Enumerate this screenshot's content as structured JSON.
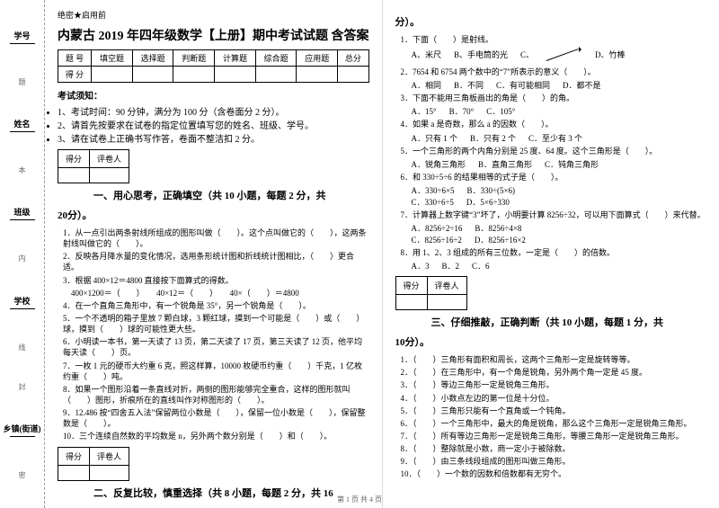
{
  "secret": "绝密★启用前",
  "title": "内蒙古 2019 年四年级数学【上册】期中考试试题 含答案",
  "scoreTable": {
    "headers": [
      "题 号",
      "填空题",
      "选择题",
      "判断题",
      "计算题",
      "综合题",
      "应用题",
      "总分"
    ],
    "row": [
      "得 分",
      "",
      "",
      "",
      "",
      "",
      "",
      ""
    ]
  },
  "noticeHdr": "考试须知：",
  "notices": [
    "1、考试时间：90 分钟，满分为 100 分（含卷面分 2 分）。",
    "2、请首先按要求在试卷的指定位置填写您的姓名、班级、学号。",
    "3、请在试卷上正确书写作答，卷面不整洁扣 2 分。"
  ],
  "markCols": [
    "得分",
    "评卷人"
  ],
  "sect1": "一、用心思考，正确填空（共 10 小题，每题 2 分，共",
  "sect1b": "20分）。",
  "q1": [
    "1．从一点引出两条射线所组成的图形叫做（　　）。这个点叫做它的（　　），这两条射线叫做它的（　　）。",
    "2．反映各月降水量的变化情况，选用条形统计图和折线统计图相比，（　　）更合适。",
    "3．根据 400×12＝4800 直接按下面算式的得数。",
    "　400×1200＝（　　）　　40×12＝（　　）　　40×（　　）＝4800",
    "4．在一个直角三角形中，有一个锐角是 35°，另一个锐角是（　　）。",
    "5．一个不透明的箱子里放 7 颗白球，3 颗红球，摸到一个可能是（　　）或（　　）球，摸到（　　）球的可能性更大些。",
    "6．小明读一本书，第一天读了 13 页，第二天读了 17 页，第三天读了 12 页，他平均每天读（　　）页。",
    "7．一枚 1 元的硬币大约重 6 克，照这样算，10000 枚硬币约重（　　）千克，1 亿枚约重（　　）吨。",
    "8．如果一个图形沿着一条直线对折，两侧的图形能够完全重合，这样的图形就叫（　　）图形，折痕所在的直线叫作对称图形的（　　）。",
    "9．12.486 按“四舍五入法”保留两位小数是（　　），保留一位小数是（　　），保留整数是（　　）。",
    "10．三个连续自然数的平均数是 n，另外两个数分别是（　　）和（　　）。"
  ],
  "sect2": "二、反复比较，慎重选择（共 8 小题，每题 2 分，共 16",
  "sect2b": "分）。",
  "q2": [
    {
      "t": "1．下面（　　）是射线。",
      "opts": [
        "A、米尺",
        "B、手电筒的光",
        "C、",
        "D、竹棒"
      ],
      "arrow": true
    },
    {
      "t": "2．7654 和 6754 两个数中的“7”所表示的意义（　　）。",
      "opts": [
        "A．相同",
        "B．不同",
        "C．有可能相同",
        "D．都不是"
      ]
    },
    {
      "t": "3．下面不能用三角板画出的角是（　　）的角。",
      "opts": [
        "A．15°",
        "B．70°",
        "C．105°"
      ]
    },
    {
      "t": "4．如果 a 是奇数，那么 a 的因数（　　）。",
      "opts": [
        "A．只有 1 个",
        "B．只有 2 个",
        "C．至少有 3 个"
      ]
    },
    {
      "t": "5．一个三角形的两个内角分别是 25 度、64 度。这个三角形是（　　）。",
      "opts": [
        "A．锐角三角形",
        "B．直角三角形",
        "C．钝角三角形"
      ]
    },
    {
      "t": "6．和 330÷5÷6 的结果相等的式子是（　　）。",
      "opts": [
        "A．330÷6×5",
        "B．330÷(5×6)",
        "",
        "C．330÷6÷5",
        "D．5×6÷330"
      ]
    },
    {
      "t": "7．计算器上数字键“3”坏了，小明要计算 8256÷32，可以用下面算式（　　）来代替。",
      "opts": [
        "A．8256÷2÷16",
        "B．8256÷4×8",
        "",
        "C．8256÷16÷2",
        "D．8256÷16×2"
      ]
    },
    {
      "t": "8．用 1、2、3 组成的所有三位数，一定是（　　）的倍数。",
      "opts": [
        "A．3",
        "B．2",
        "C．6"
      ]
    }
  ],
  "sect3": "三、仔细推敲，正确判断（共 10 小题，每题 1 分，共",
  "sect3b": "10分）。",
  "q3": [
    "1．（　　）三角形有面积和周长，这两个三角形一定是旋转等等。",
    "2．（　　）在三角形中，有一个角是锐角，另外两个角一定是 45 度。",
    "3．（　　）等边三角形一定是锐角三角形。",
    "4．（　　）小数点左边的第一位是十分位。",
    "5．（　　）三角形只能有一个直角或一个钝角。",
    "6．（　　）一个三角形中，最大的角是锐角，那么这个三角形一定是锐角三角形。",
    "7．（　　）所有等边三角形一定是锐角三角形，等腰三角形一定是锐角三角形。",
    "8．（　　）整除就是小数，商一定小于被除数。",
    "9．（　　）由三条线段组成的图形叫做三角形。",
    "10．（　　）一个数的因数和倍数都有无穷个。"
  ],
  "sidebar": [
    "学号",
    "姓名",
    "班级",
    "学校",
    "乡镇(街道)"
  ],
  "sideNotes": [
    "题",
    "本",
    "内",
    "线",
    "封",
    "密"
  ],
  "footer": "第 1 页 共 4 页"
}
